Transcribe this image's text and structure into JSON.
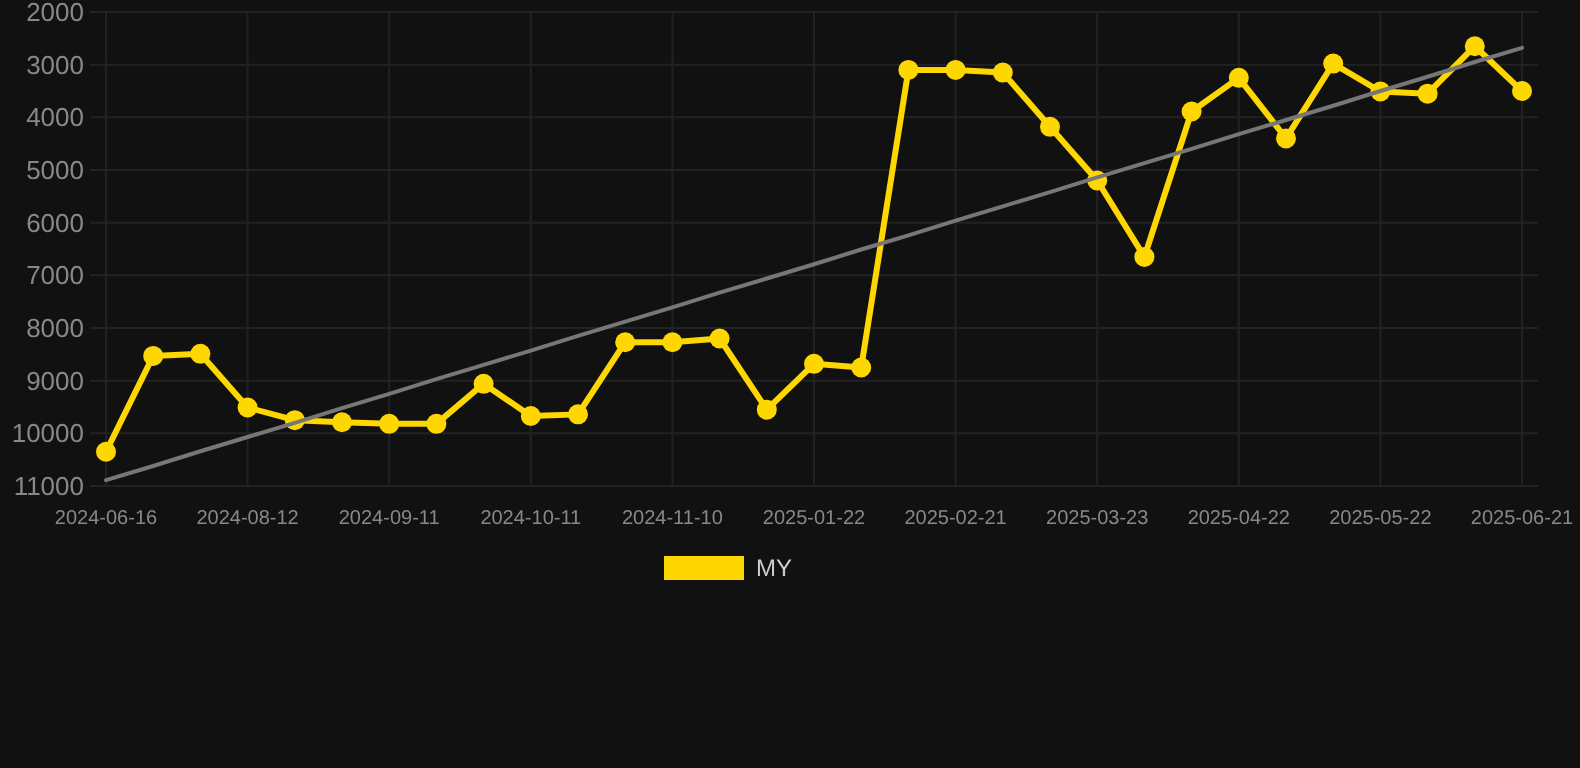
{
  "chart_data": {
    "type": "line",
    "categories": [
      "2024-06-16",
      null,
      null,
      "2024-08-12",
      null,
      null,
      "2024-09-11",
      null,
      null,
      "2024-10-11",
      null,
      null,
      "2024-11-10",
      null,
      null,
      "2025-01-22",
      null,
      null,
      "2025-02-21",
      null,
      null,
      "2025-03-23",
      null,
      null,
      "2025-04-22",
      null,
      null,
      "2025-05-22",
      null,
      null,
      "2025-06-21"
    ],
    "series": [
      {
        "name": "MY",
        "color": "#ffd700",
        "marker": "circle",
        "values": [
          10350,
          8530,
          8490,
          9510,
          9750,
          9790,
          9820,
          9820,
          9060,
          9670,
          9640,
          8270,
          8270,
          8200,
          9550,
          8680,
          8750,
          3100,
          3100,
          3150,
          4180,
          5200,
          6650,
          3890,
          3250,
          4400,
          2980,
          3510,
          3550,
          2650,
          3500
        ]
      },
      {
        "color": "#777777",
        "marker": "none",
        "values": [
          10890,
          10620,
          10340,
          10070,
          9800,
          9520,
          9250,
          8970,
          8700,
          8430,
          8150,
          7880,
          7610,
          7330,
          7060,
          6790,
          6510,
          6240,
          5960,
          5690,
          5420,
          5140,
          4870,
          4600,
          4320,
          4050,
          3780,
          3500,
          3230,
          2950,
          2680
        ]
      }
    ],
    "ylim": [
      11000,
      2000
    ],
    "yticks": [
      2000,
      3000,
      4000,
      5000,
      6000,
      7000,
      8000,
      9000,
      10000,
      11000
    ],
    "grid": true,
    "legend": "bottom"
  }
}
